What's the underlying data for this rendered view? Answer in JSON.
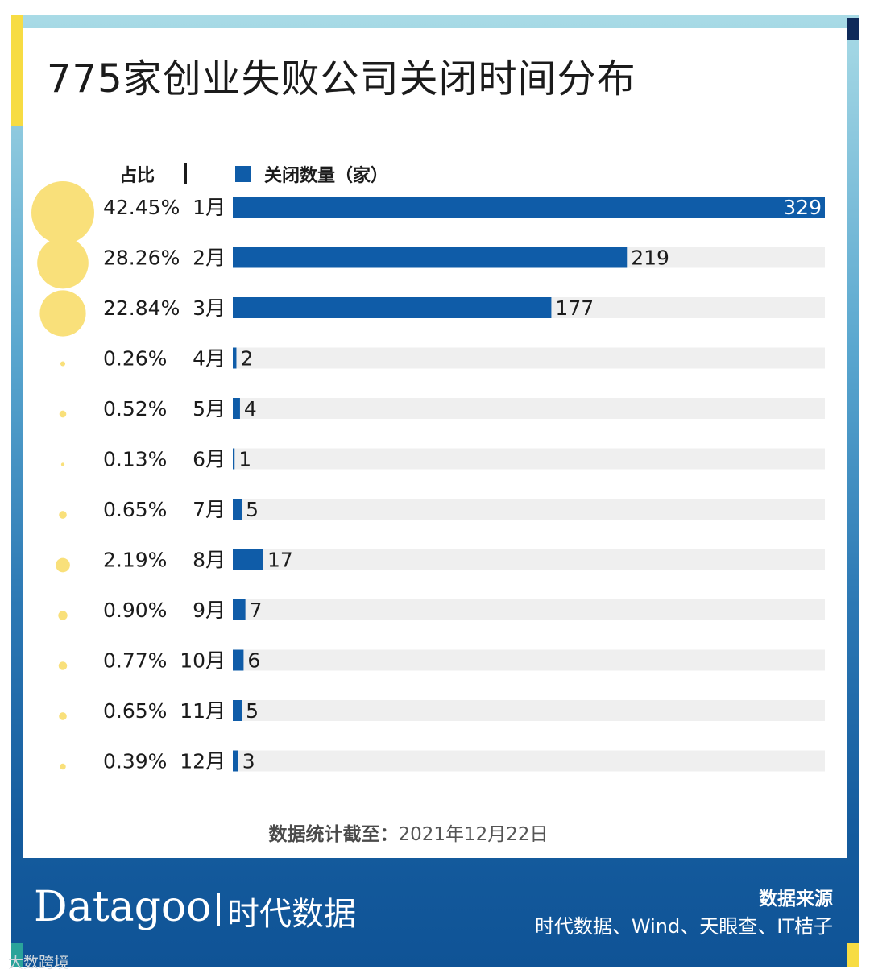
{
  "title": "775家创业失败公司关闭时间分布",
  "header": {
    "share_label": "占比",
    "legend_label": "关闭数量（家）"
  },
  "colors": {
    "bar": "#0f5ca8",
    "track": "#efefef",
    "bubble": "#f9e07a",
    "frame": "#1a5f9f",
    "accent": "#f7dc43"
  },
  "chart_data": {
    "type": "bar",
    "orientation": "horizontal",
    "legend": [
      "关闭数量（家）"
    ],
    "categories": [
      "1月",
      "2月",
      "3月",
      "4月",
      "5月",
      "6月",
      "7月",
      "8月",
      "9月",
      "10月",
      "11月",
      "12月"
    ],
    "series": [
      {
        "name": "关闭数量（家）",
        "values": [
          329,
          219,
          177,
          2,
          4,
          1,
          5,
          17,
          7,
          6,
          5,
          3
        ]
      }
    ],
    "shares": [
      "42.45%",
      "28.26%",
      "22.84%",
      "0.26%",
      "0.52%",
      "0.13%",
      "0.65%",
      "2.19%",
      "0.90%",
      "0.77%",
      "0.65%",
      "0.39%"
    ],
    "share_values": [
      42.45,
      28.26,
      22.84,
      0.26,
      0.52,
      0.13,
      0.65,
      2.19,
      0.9,
      0.77,
      0.65,
      0.39
    ],
    "xlim": [
      0,
      329
    ]
  },
  "footer": {
    "note_label": "数据统计截至：",
    "note_date": "2021年12月22日"
  },
  "brand": {
    "logo": "Datagoo",
    "name": "时代数据"
  },
  "source": {
    "title": "数据来源",
    "list": "时代数据、Wind、天眼查、IT桔子"
  },
  "corner_mark": "大数跨境"
}
